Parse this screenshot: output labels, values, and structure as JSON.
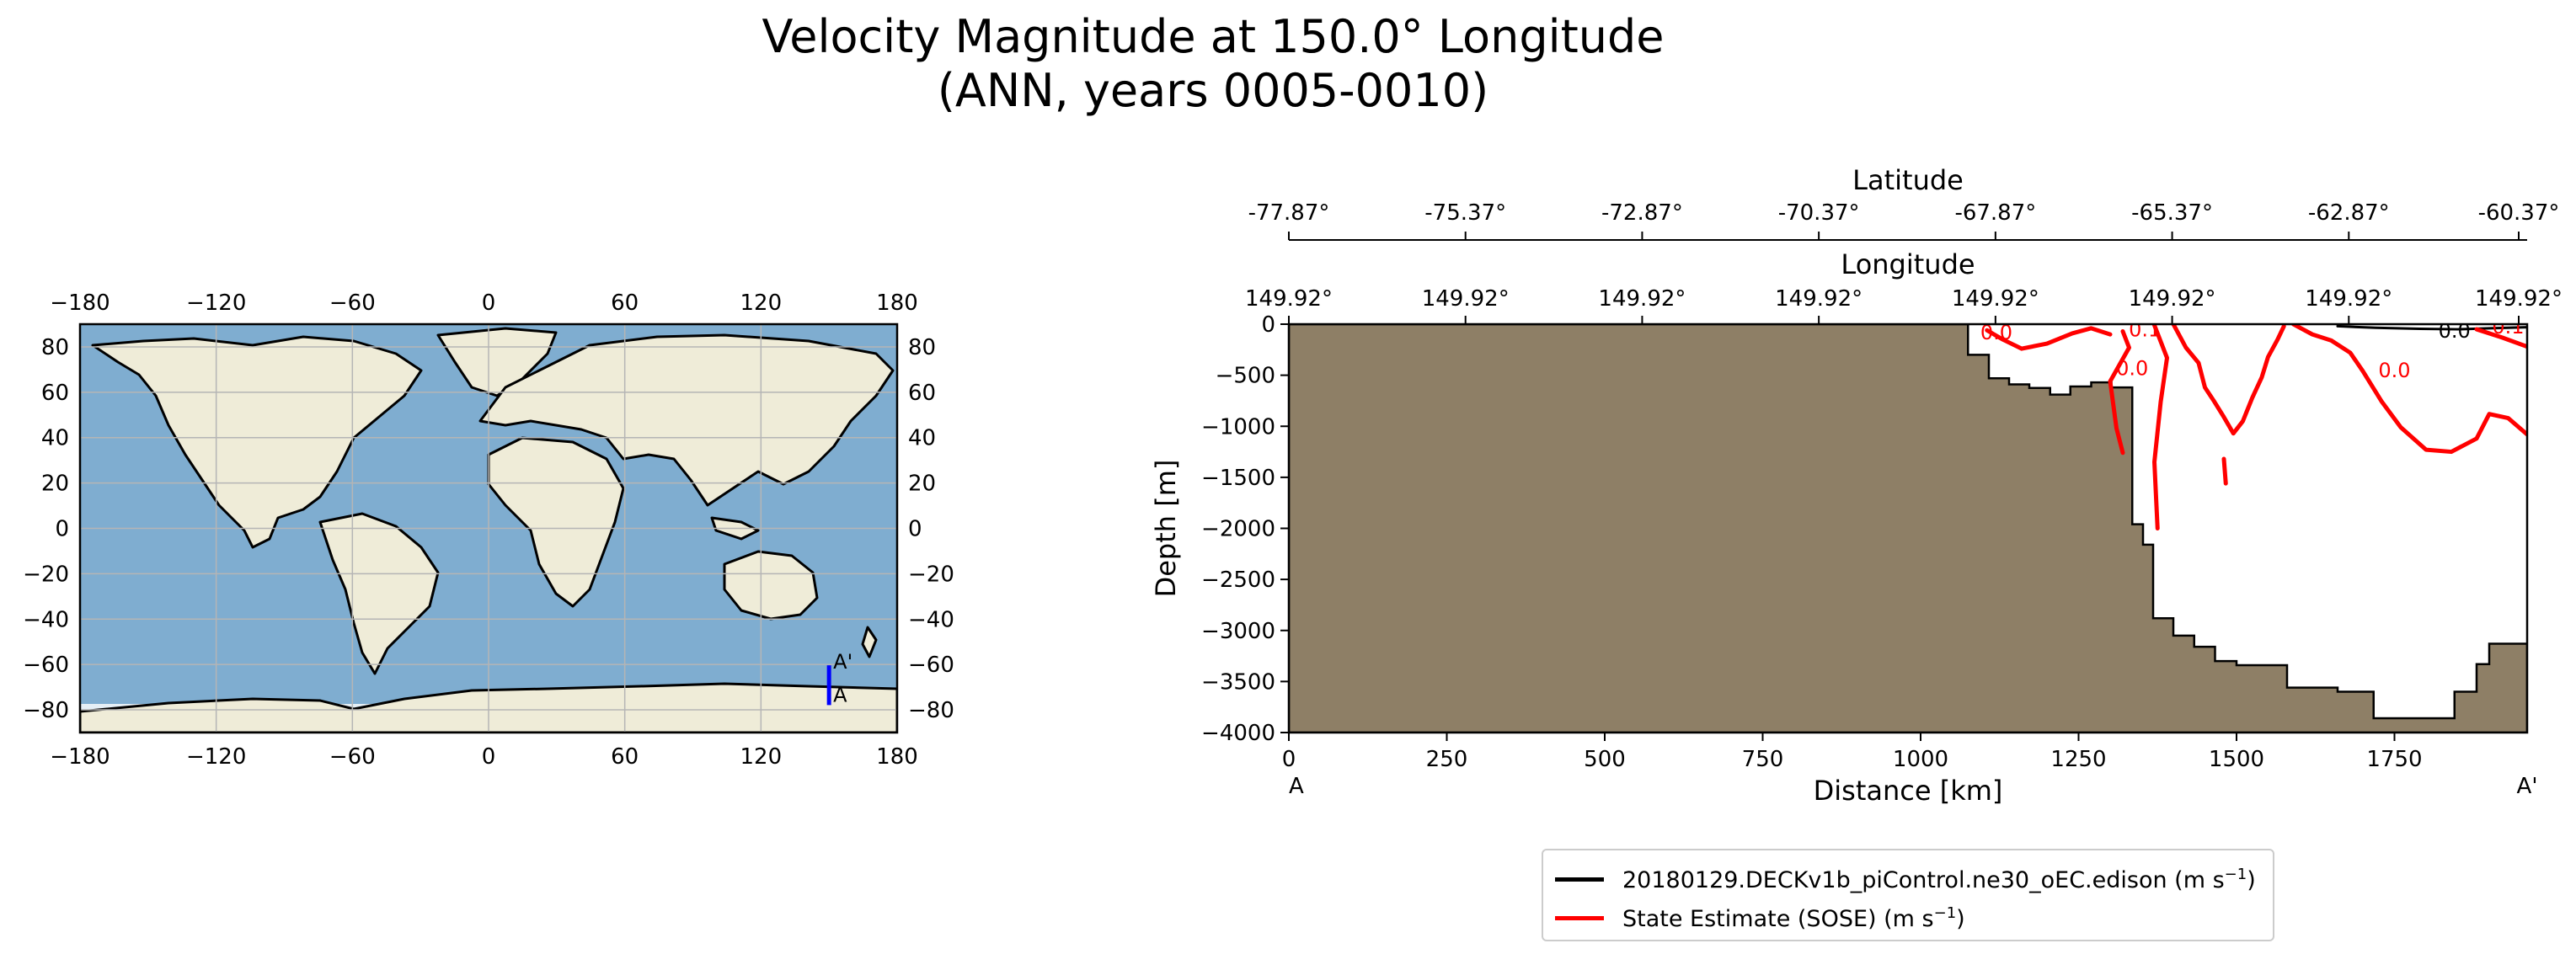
{
  "title_line1": "Velocity Magnitude at 150.0° Longitude",
  "title_line2": "(ANN, years 0005-0010)",
  "map": {
    "lon_ticks": [
      "−180",
      "−120",
      "−60",
      "0",
      "60",
      "120",
      "180"
    ],
    "lat_ticks": [
      "80",
      "60",
      "40",
      "20",
      "0",
      "−20",
      "−40",
      "−60",
      "−80"
    ],
    "lon_values": [
      -180,
      -120,
      -60,
      0,
      60,
      120,
      180
    ],
    "lat_values": [
      80,
      60,
      40,
      20,
      0,
      -20,
      -40,
      -60,
      -80
    ],
    "transect": {
      "lon": 150.0,
      "lat_start": -77.87,
      "lat_end": -60.37,
      "start_label": "A",
      "end_label": "A'",
      "color": "#0000ff"
    },
    "colors": {
      "ocean": "#7fadd0",
      "land": "#efecd8",
      "grid": "#b5b5b5",
      "sea_ice": "#ffffff"
    }
  },
  "chart_data": [
    {
      "type": "line",
      "ylabel": "Depth [m]",
      "xlabel": "Distance [km]",
      "xlim": [
        0,
        1960
      ],
      "ylim": [
        -4000,
        0
      ],
      "x_ticks": [
        0,
        250,
        500,
        750,
        1000,
        1250,
        1500,
        1750
      ],
      "y_ticks": [
        0,
        -500,
        -1000,
        -1500,
        -2000,
        -2500,
        -3000,
        -3500,
        -4000
      ],
      "y_tick_labels": [
        "0",
        "−500",
        "−1000",
        "−1500",
        "−2000",
        "−2500",
        "−3000",
        "−3500",
        "−4000"
      ],
      "endpoint_labels": {
        "start": "A",
        "end": "A'"
      },
      "latitude_axis": {
        "label": "Latitude",
        "ticks": [
          "-77.87°",
          "-75.37°",
          "-72.87°",
          "-70.37°",
          "-67.87°",
          "-65.37°",
          "-62.87°",
          "-60.37°"
        ]
      },
      "longitude_axis": {
        "label": "Longitude",
        "ticks": [
          "149.92°",
          "149.92°",
          "149.92°",
          "149.92°",
          "149.92°",
          "149.92°",
          "149.92°",
          "149.92°"
        ]
      },
      "bathymetry_color": "#8e7f66",
      "bathymetry": [
        [
          0,
          0
        ],
        [
          1075,
          0
        ],
        [
          1075,
          -300
        ],
        [
          1108,
          -300
        ],
        [
          1108,
          -530
        ],
        [
          1140,
          -530
        ],
        [
          1140,
          -590
        ],
        [
          1172,
          -590
        ],
        [
          1172,
          -625
        ],
        [
          1205,
          -625
        ],
        [
          1205,
          -690
        ],
        [
          1237,
          -690
        ],
        [
          1237,
          -610
        ],
        [
          1270,
          -610
        ],
        [
          1270,
          -570
        ],
        [
          1302,
          -570
        ],
        [
          1302,
          -620
        ],
        [
          1335,
          -620
        ],
        [
          1335,
          -1960
        ],
        [
          1352,
          -1960
        ],
        [
          1352,
          -2160
        ],
        [
          1368,
          -2160
        ],
        [
          1368,
          -2880
        ],
        [
          1400,
          -2880
        ],
        [
          1400,
          -3050
        ],
        [
          1433,
          -3050
        ],
        [
          1433,
          -3160
        ],
        [
          1466,
          -3160
        ],
        [
          1466,
          -3300
        ],
        [
          1500,
          -3300
        ],
        [
          1500,
          -3340
        ],
        [
          1580,
          -3340
        ],
        [
          1580,
          -3560
        ],
        [
          1660,
          -3560
        ],
        [
          1660,
          -3600
        ],
        [
          1717,
          -3600
        ],
        [
          1717,
          -3860
        ],
        [
          1845,
          -3860
        ],
        [
          1845,
          -3600
        ],
        [
          1880,
          -3600
        ],
        [
          1880,
          -3330
        ],
        [
          1900,
          -3330
        ],
        [
          1900,
          -3130
        ],
        [
          1960,
          -3130
        ],
        [
          1960,
          -4000
        ],
        [
          0,
          -4000
        ]
      ],
      "series": [
        {
          "name": "20180129.DECKv1b_piControl.ne30_oEC.edison (m s⁻¹)",
          "color": "#000000",
          "contours": [
            [
              [
                1660,
                -20
              ],
              [
                1720,
                -35
              ],
              [
                1790,
                -45
              ],
              [
                1850,
                -50
              ],
              [
                1900,
                -40
              ],
              [
                1960,
                -30
              ]
            ]
          ],
          "contour_labels": [
            {
              "text": "0.0",
              "x": 1845,
              "y": -130
            }
          ]
        },
        {
          "name": "State Estimate (SOSE) (m s⁻¹)",
          "color": "#ff0000",
          "contours": [
            [
              [
                1105,
                -60
              ],
              [
                1130,
                -150
              ],
              [
                1160,
                -240
              ],
              [
                1200,
                -190
              ],
              [
                1240,
                -90
              ],
              [
                1270,
                -40
              ],
              [
                1300,
                -100
              ]
            ],
            [
              [
                1320,
                -70
              ],
              [
                1330,
                -230
              ],
              [
                1300,
                -560
              ],
              [
                1310,
                -1020
              ],
              [
                1320,
                -1260
              ]
            ],
            [
              [
                1370,
                -10
              ],
              [
                1390,
                -330
              ],
              [
                1380,
                -760
              ],
              [
                1370,
                -1350
              ],
              [
                1375,
                -2000
              ]
            ],
            [
              [
                1400,
                0
              ],
              [
                1420,
                -230
              ],
              [
                1440,
                -380
              ],
              [
                1450,
                -620
              ],
              [
                1465,
                -760
              ],
              [
                1480,
                -910
              ],
              [
                1495,
                -1070
              ],
              [
                1510,
                -950
              ],
              [
                1525,
                -720
              ],
              [
                1540,
                -520
              ],
              [
                1550,
                -320
              ],
              [
                1565,
                -150
              ],
              [
                1575,
                -20
              ]
            ],
            [
              [
                1480,
                -1320
              ],
              [
                1483,
                -1560
              ]
            ],
            [
              [
                1590,
                0
              ],
              [
                1620,
                -100
              ],
              [
                1650,
                -160
              ],
              [
                1680,
                -280
              ],
              [
                1700,
                -460
              ],
              [
                1730,
                -760
              ],
              [
                1760,
                -1010
              ],
              [
                1800,
                -1230
              ],
              [
                1840,
                -1250
              ],
              [
                1880,
                -1120
              ],
              [
                1900,
                -880
              ],
              [
                1930,
                -920
              ],
              [
                1960,
                -1080
              ]
            ],
            [
              [
                1880,
                -50
              ],
              [
                1920,
                -130
              ],
              [
                1960,
                -220
              ]
            ]
          ],
          "contour_labels": [
            {
              "text": "0.0",
              "x": 1120,
              "y": -150
            },
            {
              "text": "0.0",
              "x": 1335,
              "y": -500
            },
            {
              "text": "0.0",
              "x": 1750,
              "y": -520
            },
            {
              "text": "0.1",
              "x": 1355,
              "y": -120
            },
            {
              "text": "0.1",
              "x": 1930,
              "y": -90
            }
          ]
        }
      ]
    }
  ],
  "legend": {
    "items": [
      {
        "label": "20180129.DECKv1b_piControl.ne30_oEC.edison (m s",
        "sup": "−1",
        "suffix": ")",
        "color": "#000000"
      },
      {
        "label": "State Estimate (SOSE) (m s",
        "sup": "−1",
        "suffix": ")",
        "color": "#ff0000"
      }
    ]
  }
}
